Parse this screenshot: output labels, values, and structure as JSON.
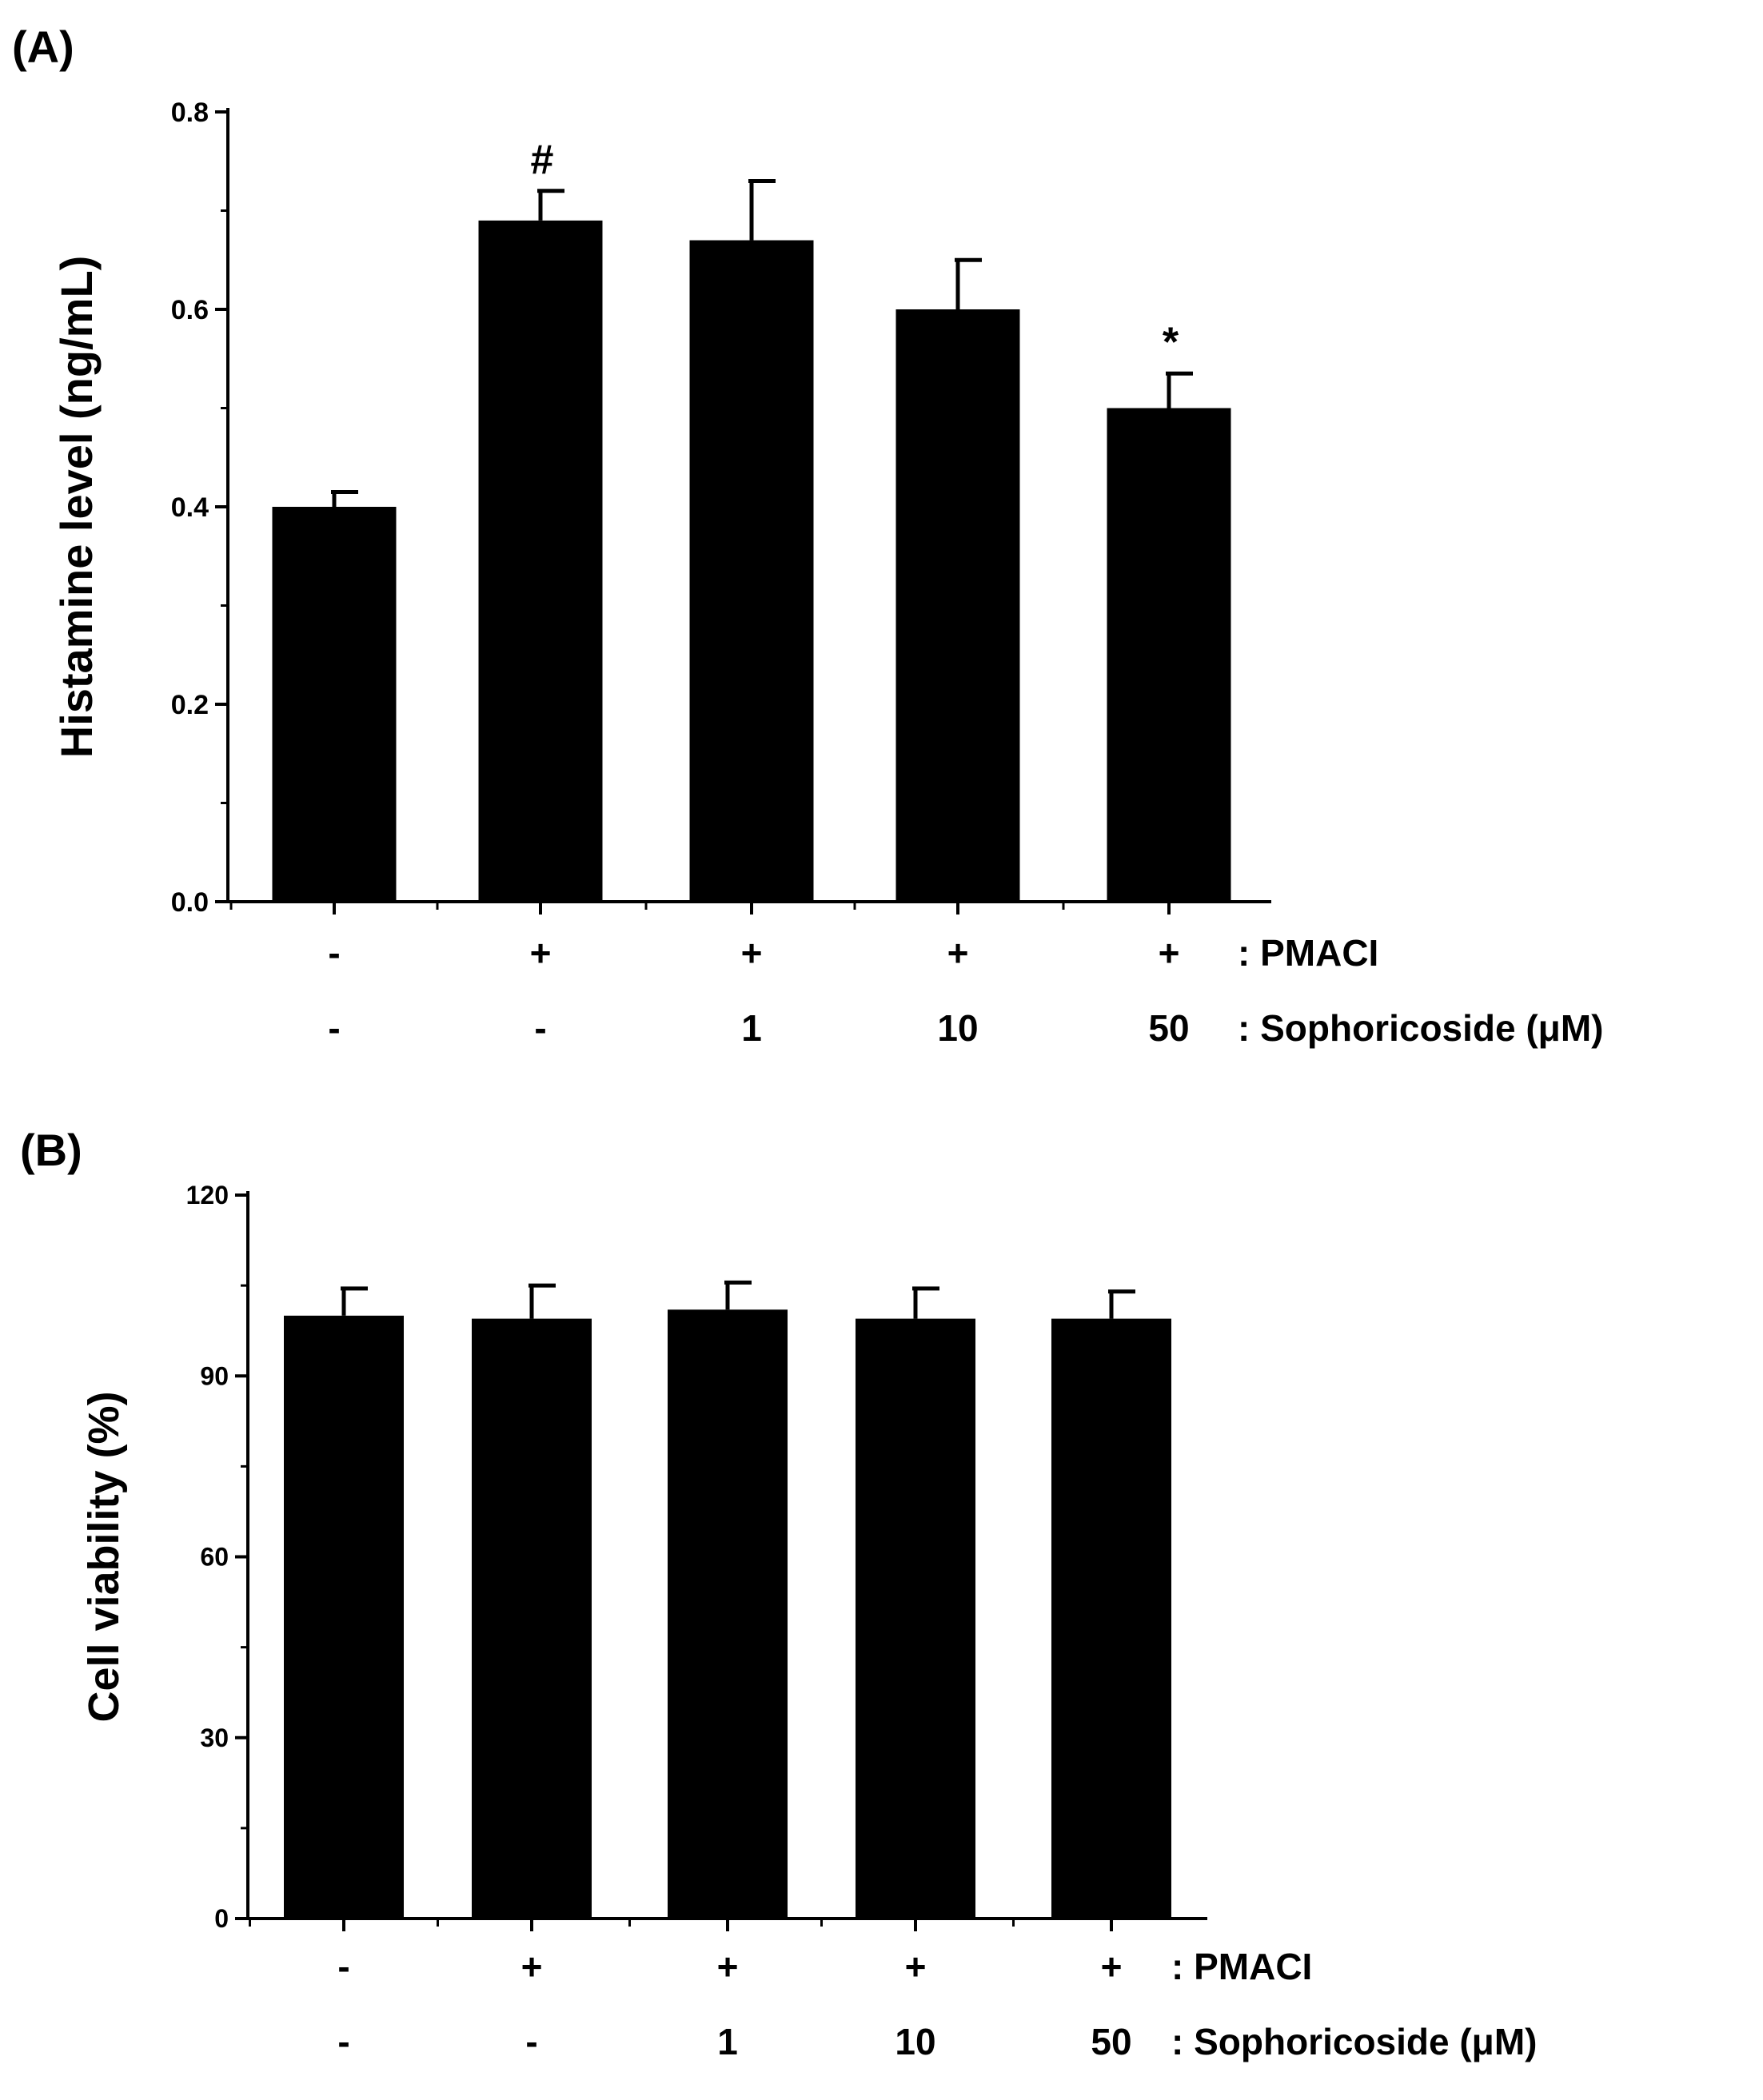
{
  "colors": {
    "bar": "#000000",
    "axis": "#000000",
    "background": "#ffffff"
  },
  "chart_data": [
    {
      "panel_label": "(A)",
      "type": "bar",
      "ylabel": "Histamine level (ng/mL)",
      "ylim": [
        0,
        0.8
      ],
      "yticks": [
        0.0,
        0.2,
        0.4,
        0.6,
        0.8
      ],
      "ytick_labels": [
        "0.0",
        "0.2",
        "0.4",
        "0.6",
        "0.8"
      ],
      "values": [
        0.4,
        0.69,
        0.67,
        0.6,
        0.5
      ],
      "errors": [
        0.015,
        0.03,
        0.06,
        0.05,
        0.035
      ],
      "annotations": [
        "",
        "#",
        "",
        "",
        "*"
      ],
      "row_labels": [
        {
          "values": [
            "-",
            "+",
            "+",
            "+",
            "+"
          ],
          "label": ": PMACI"
        },
        {
          "values": [
            "-",
            "-",
            "1",
            "10",
            "50"
          ],
          "label": ":  Sophoricoside (μM)"
        }
      ]
    },
    {
      "panel_label": "(B)",
      "type": "bar",
      "ylabel": "Cell viability (%)",
      "ylim": [
        0,
        120
      ],
      "yticks": [
        0,
        30,
        60,
        90,
        120
      ],
      "ytick_labels": [
        "0",
        "30",
        "60",
        "90",
        "120"
      ],
      "values": [
        100,
        99.5,
        101,
        99.5,
        99.5
      ],
      "errors": [
        4.5,
        5.5,
        4.5,
        5,
        4.5
      ],
      "annotations": [
        "",
        "",
        "",
        "",
        ""
      ],
      "row_labels": [
        {
          "values": [
            "-",
            "+",
            "+",
            "+",
            "+"
          ],
          "label": ": PMACI"
        },
        {
          "values": [
            "-",
            "-",
            "1",
            "10",
            "50"
          ],
          "label": ":  Sophoricoside (μM)"
        }
      ]
    }
  ]
}
